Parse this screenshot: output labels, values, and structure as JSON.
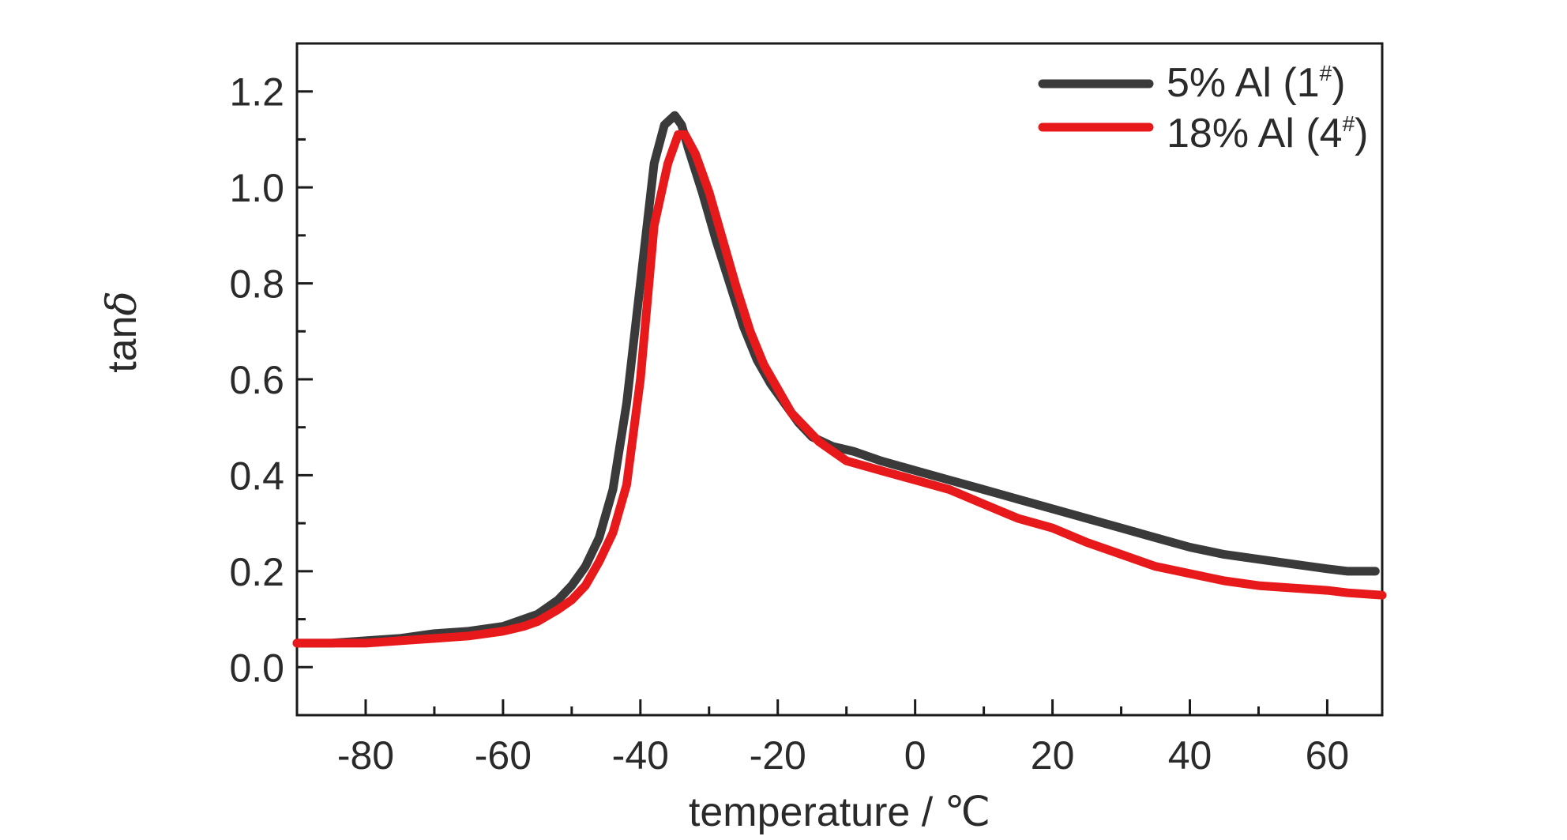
{
  "chart_data": {
    "type": "line",
    "title": "",
    "xlabel": "temperature / ℃",
    "ylabel_main": "tan",
    "ylabel_symbol": "δ",
    "xlim": [
      -90,
      68
    ],
    "ylim": [
      -0.1,
      1.3
    ],
    "x_ticks": [
      -80,
      -60,
      -40,
      -20,
      0,
      20,
      40,
      60
    ],
    "x_tick_labels": [
      "-80",
      "-60",
      "-40",
      "-20",
      "0",
      "20",
      "40",
      "60"
    ],
    "y_ticks": [
      0.0,
      0.2,
      0.4,
      0.6,
      0.8,
      1.0,
      1.2
    ],
    "y_tick_labels": [
      "0.0",
      "0.2",
      "0.4",
      "0.6",
      "0.8",
      "1.0",
      "1.2"
    ],
    "grid": false,
    "legend_position": "top-right",
    "series": [
      {
        "name": "5% Al (1#)",
        "legend_main": "5% Al (1",
        "legend_sup": "#",
        "legend_end": ")",
        "color": "#3a3a3a",
        "x": [
          -90,
          -85,
          -80,
          -75,
          -70,
          -65,
          -60,
          -57,
          -55,
          -52,
          -50,
          -48,
          -46,
          -44,
          -42,
          -40,
          -38,
          -36.5,
          -35,
          -34,
          -33,
          -31,
          -29,
          -27,
          -25,
          -23,
          -21,
          -19,
          -17,
          -15,
          -12,
          -9,
          -5,
          0,
          5,
          10,
          15,
          20,
          25,
          30,
          35,
          40,
          45,
          50,
          55,
          60,
          63,
          67
        ],
        "y": [
          0.05,
          0.05,
          0.055,
          0.06,
          0.07,
          0.075,
          0.085,
          0.1,
          0.11,
          0.14,
          0.17,
          0.21,
          0.27,
          0.37,
          0.55,
          0.8,
          1.05,
          1.13,
          1.15,
          1.13,
          1.08,
          0.99,
          0.89,
          0.8,
          0.71,
          0.64,
          0.59,
          0.55,
          0.51,
          0.48,
          0.46,
          0.45,
          0.43,
          0.41,
          0.39,
          0.37,
          0.35,
          0.33,
          0.31,
          0.29,
          0.27,
          0.25,
          0.235,
          0.225,
          0.215,
          0.205,
          0.2,
          0.2
        ]
      },
      {
        "name": "18% Al (4#)",
        "legend_main": "18% Al (4",
        "legend_sup": "#",
        "legend_end": ")",
        "color": "#e8191b",
        "x": [
          -90,
          -85,
          -80,
          -75,
          -70,
          -65,
          -60,
          -57,
          -55,
          -52,
          -50,
          -48,
          -46,
          -44,
          -42,
          -40,
          -38,
          -36,
          -34.5,
          -33.5,
          -32,
          -30,
          -28,
          -26,
          -24,
          -22,
          -20,
          -18,
          -16,
          -14,
          -12,
          -10,
          -5,
          0,
          5,
          10,
          15,
          20,
          25,
          30,
          35,
          40,
          45,
          50,
          55,
          60,
          63,
          68
        ],
        "y": [
          0.05,
          0.05,
          0.05,
          0.055,
          0.06,
          0.065,
          0.075,
          0.085,
          0.095,
          0.12,
          0.14,
          0.17,
          0.22,
          0.28,
          0.38,
          0.6,
          0.92,
          1.05,
          1.11,
          1.11,
          1.07,
          0.99,
          0.89,
          0.79,
          0.7,
          0.63,
          0.58,
          0.53,
          0.5,
          0.47,
          0.45,
          0.43,
          0.41,
          0.39,
          0.37,
          0.34,
          0.31,
          0.29,
          0.26,
          0.235,
          0.21,
          0.195,
          0.18,
          0.17,
          0.165,
          0.16,
          0.155,
          0.15
        ]
      }
    ]
  }
}
